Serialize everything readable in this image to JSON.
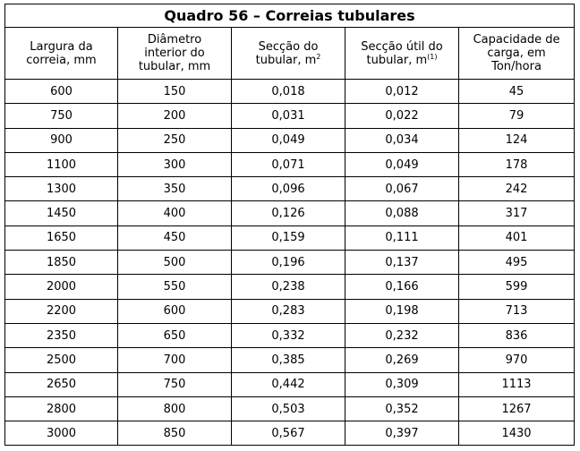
{
  "title": "Quadro 56 – Correias tubulares",
  "header": [
    {
      "lines": [
        "Largura da",
        "correia, mm"
      ]
    },
    {
      "lines": [
        "Diâmetro",
        "interior do",
        "tubular, mm"
      ]
    },
    {
      "lines": [
        "Secção do",
        "tubular, m"
      ],
      "sup": "2"
    },
    {
      "lines": [
        "Secção útil do",
        "tubular, m"
      ],
      "sup": "(1)"
    },
    {
      "lines": [
        "Capacidade de",
        "carga, em",
        "Ton/hora"
      ]
    }
  ],
  "rows": [
    [
      "600",
      "150",
      "0,018",
      "0,012",
      "45"
    ],
    [
      "750",
      "200",
      "0,031",
      "0,022",
      "79"
    ],
    [
      "900",
      "250",
      "0,049",
      "0,034",
      "124"
    ],
    [
      "1100",
      "300",
      "0,071",
      "0,049",
      "178"
    ],
    [
      "1300",
      "350",
      "0,096",
      "0,067",
      "242"
    ],
    [
      "1450",
      "400",
      "0,126",
      "0,088",
      "317"
    ],
    [
      "1650",
      "450",
      "0,159",
      "0,111",
      "401"
    ],
    [
      "1850",
      "500",
      "0,196",
      "0,137",
      "495"
    ],
    [
      "2000",
      "550",
      "0,238",
      "0,166",
      "599"
    ],
    [
      "2200",
      "600",
      "0,283",
      "0,198",
      "713"
    ],
    [
      "2350",
      "650",
      "0,332",
      "0,232",
      "836"
    ],
    [
      "2500",
      "700",
      "0,385",
      "0,269",
      "970"
    ],
    [
      "2650",
      "750",
      "0,442",
      "0,309",
      "1113"
    ],
    [
      "2800",
      "800",
      "0,503",
      "0,352",
      "1267"
    ],
    [
      "3000",
      "850",
      "0,567",
      "0,397",
      "1430"
    ]
  ]
}
